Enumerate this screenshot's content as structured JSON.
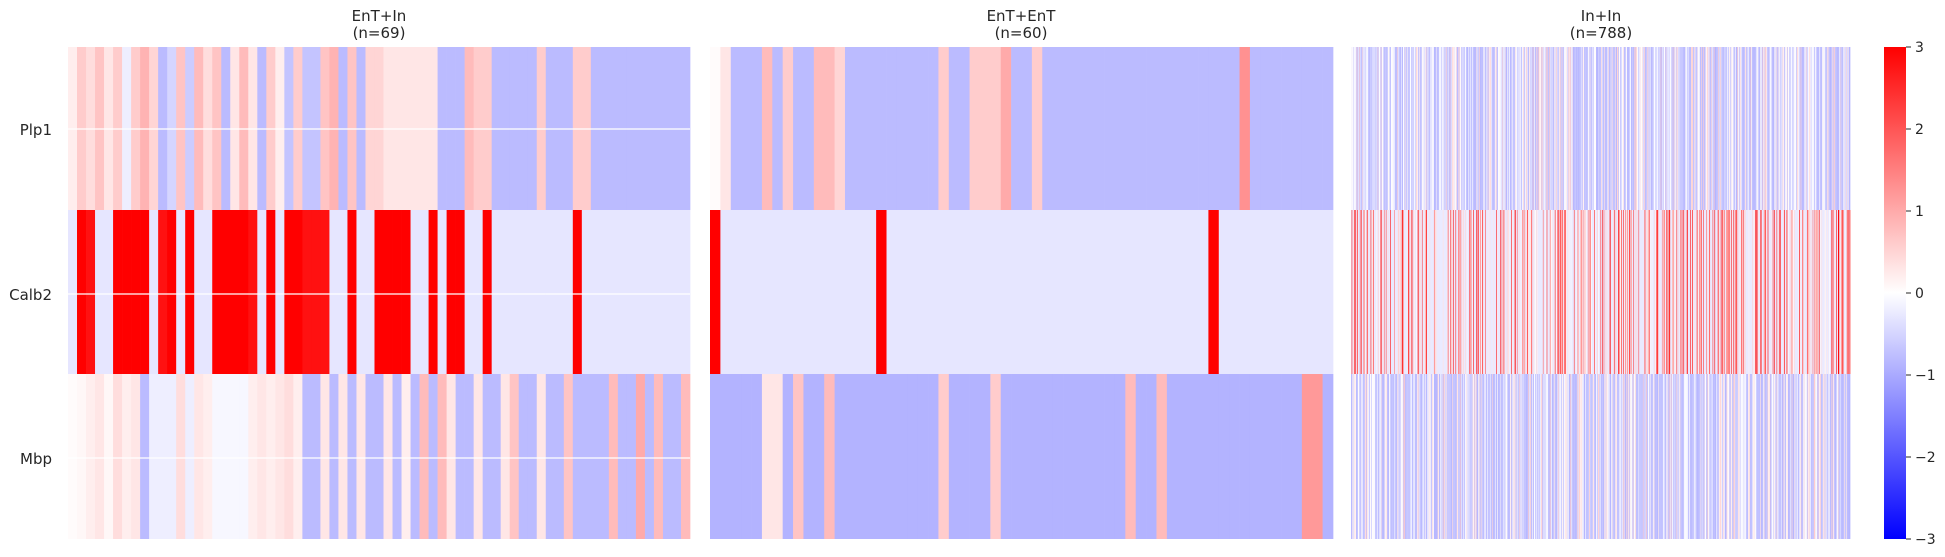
{
  "chart_data": {
    "type": "heatmap",
    "color_scale": {
      "min": -3,
      "max": 3,
      "low_color": "#0000ff",
      "mid_color": "#ffffff",
      "high_color": "#ff0000"
    },
    "colorbar_ticks": [
      3,
      2,
      1,
      0,
      -1,
      -2,
      -3
    ],
    "colorbar_tick_labels": [
      "3",
      "2",
      "1",
      "0",
      "−1",
      "−2",
      "−3"
    ],
    "genes": [
      "Plp1",
      "Calb2",
      "Mbp"
    ],
    "panels": [
      {
        "title_line1": "EnT+In",
        "title_line2": "(n=69)",
        "n": 69,
        "values": {
          "Plp1": [
            0.2,
            0.6,
            0.4,
            0.7,
            0.3,
            0.6,
            -0.2,
            0.6,
            0.9,
            0.5,
            -0.8,
            -0.5,
            0.7,
            -0.6,
            0.8,
            0.4,
            0.7,
            -0.8,
            0.3,
            0.8,
            0.3,
            -0.8,
            0.6,
            0.2,
            -0.7,
            0.6,
            -0.7,
            -0.7,
            0.7,
            0.9,
            -0.8,
            0.7,
            -0.8,
            0.5,
            0.5,
            0.3,
            0.3,
            0.3,
            0.3,
            0.3,
            0.3,
            -0.8,
            -0.8,
            -0.8,
            0.8,
            0.6,
            0.6,
            -0.8,
            -0.8,
            -0.8,
            -0.8,
            -0.8,
            0.6,
            -0.8,
            -0.8,
            -0.8,
            0.6,
            0.6,
            -0.8,
            -0.8,
            -0.8,
            -0.8,
            -0.8,
            -0.8,
            -0.8,
            -0.8,
            -0.8,
            -0.8,
            -0.8
          ],
          "Calb2": [
            -0.3,
            3,
            2.8,
            -0.3,
            -0.3,
            3,
            3,
            3,
            3,
            -0.3,
            2.8,
            3,
            -0.3,
            3,
            -0.3,
            -0.3,
            3,
            3,
            3,
            3,
            2.8,
            -0.3,
            3,
            -0.3,
            3,
            3,
            2.8,
            2.8,
            2.8,
            -0.3,
            -0.3,
            3,
            -0.3,
            -0.3,
            3,
            3,
            3,
            3,
            -0.3,
            -0.3,
            3,
            -0.3,
            3,
            3,
            -0.3,
            -0.3,
            3,
            -0.3,
            -0.3,
            -0.3,
            -0.3,
            -0.3,
            -0.3,
            -0.3,
            -0.3,
            -0.3,
            3,
            -0.3,
            -0.3,
            -0.3,
            -0.3,
            -0.3,
            -0.3,
            -0.3,
            -0.3,
            -0.3,
            -0.3,
            -0.3,
            -0.3
          ],
          "Mbp": [
            0.05,
            0.1,
            0.2,
            0.3,
            0.1,
            0.4,
            0.2,
            0.3,
            -0.8,
            -0.2,
            -0.2,
            -0.2,
            0.4,
            -0.2,
            0.3,
            0.2,
            -0.1,
            -0.1,
            -0.1,
            -0.1,
            0.2,
            0.3,
            0.2,
            0.3,
            0.4,
            0.2,
            -0.8,
            -0.8,
            0.3,
            -0.8,
            0.3,
            -0.8,
            0.3,
            -0.8,
            -0.8,
            0.3,
            -0.8,
            0.2,
            -0.8,
            0.8,
            -0.8,
            0.8,
            0.3,
            -0.8,
            -0.8,
            0.3,
            -0.8,
            -0.8,
            0.3,
            0.7,
            -0.8,
            -0.8,
            0.3,
            -0.8,
            -0.8,
            0.7,
            -0.8,
            -0.8,
            -0.8,
            -0.8,
            0.8,
            -0.8,
            -0.8,
            1.0,
            -0.8,
            0.8,
            -0.8,
            -0.8,
            0.8
          ]
        }
      },
      {
        "title_line1": "EnT+EnT",
        "title_line2": "(n=60)",
        "n": 60,
        "values": {
          "Plp1": [
            0.05,
            0.3,
            -0.8,
            -0.8,
            -0.8,
            0.8,
            -0.8,
            0.6,
            -0.8,
            -0.8,
            0.8,
            0.8,
            0.5,
            -0.8,
            -0.8,
            -0.8,
            -0.8,
            -0.8,
            -0.8,
            -0.8,
            -0.8,
            -0.8,
            0.6,
            -0.8,
            -0.8,
            0.6,
            0.6,
            0.6,
            1.0,
            -0.8,
            -0.8,
            0.6,
            -0.8,
            -0.8,
            -0.8,
            -0.8,
            -0.8,
            -0.8,
            -0.8,
            -0.8,
            -0.8,
            -0.8,
            -0.8,
            -0.8,
            -0.8,
            -0.8,
            -0.8,
            -0.8,
            -0.8,
            -0.8,
            -0.8,
            1.3,
            -0.8,
            -0.8,
            -0.8,
            -0.8,
            -0.8,
            -0.8,
            -0.8,
            -0.8
          ],
          "Calb2": [
            3,
            -0.3,
            -0.3,
            -0.3,
            -0.3,
            -0.3,
            -0.3,
            -0.3,
            -0.3,
            -0.3,
            -0.3,
            -0.3,
            -0.3,
            -0.3,
            -0.3,
            -0.3,
            3,
            -0.3,
            -0.3,
            -0.3,
            -0.3,
            -0.3,
            -0.3,
            -0.3,
            -0.3,
            -0.3,
            -0.3,
            -0.3,
            -0.3,
            -0.3,
            -0.3,
            -0.3,
            -0.3,
            -0.3,
            -0.3,
            -0.3,
            -0.3,
            -0.3,
            -0.3,
            -0.3,
            -0.3,
            -0.3,
            -0.3,
            -0.3,
            -0.3,
            -0.3,
            -0.3,
            -0.3,
            3,
            -0.3,
            -0.3,
            -0.3,
            -0.3,
            -0.3,
            -0.3,
            -0.3,
            -0.3,
            -0.3,
            -0.3,
            -0.3
          ],
          "Mbp": [
            -0.9,
            -0.9,
            -0.9,
            -0.9,
            -0.9,
            0.3,
            0.3,
            -0.9,
            0.7,
            -0.9,
            -0.9,
            0.8,
            -0.9,
            -0.9,
            -0.9,
            -0.9,
            -0.9,
            -0.9,
            -0.9,
            -0.9,
            -0.9,
            -0.9,
            0.6,
            -0.9,
            -0.9,
            -0.9,
            -0.9,
            0.6,
            -0.9,
            -0.9,
            -0.9,
            -0.9,
            -0.9,
            -0.9,
            -0.9,
            -0.9,
            -0.9,
            -0.9,
            -0.9,
            -0.9,
            0.8,
            -0.9,
            -0.9,
            0.8,
            -0.9,
            -0.9,
            -0.9,
            -0.9,
            -0.9,
            -0.9,
            -0.9,
            -0.9,
            -0.9,
            -0.9,
            -0.9,
            -0.9,
            -0.9,
            1.2,
            1.2,
            -0.9
          ]
        }
      },
      {
        "title_line1": "In+In",
        "title_line2": "(n=788)",
        "n": 788,
        "values": {}
      }
    ]
  }
}
